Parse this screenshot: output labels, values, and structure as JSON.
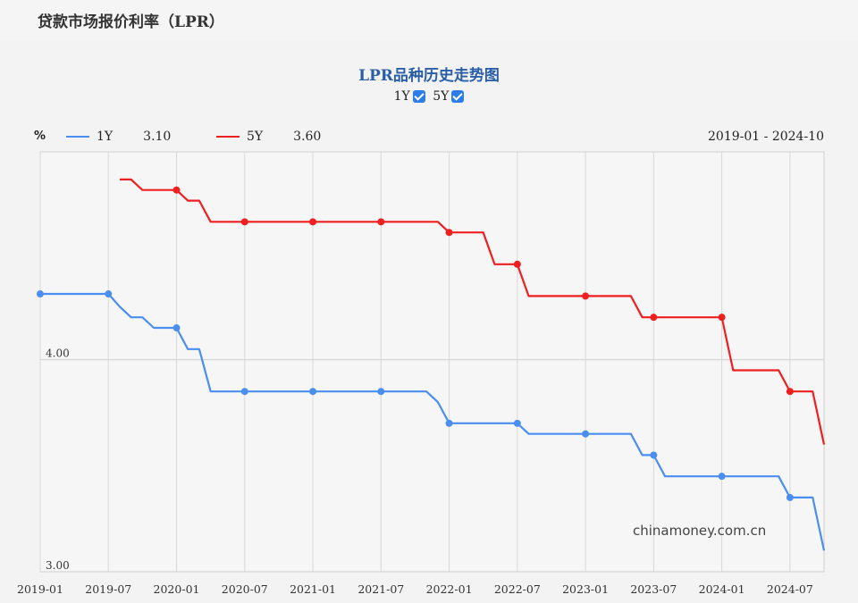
{
  "page": {
    "title": "贷款市场报价利率（LPR）"
  },
  "chart_data": {
    "type": "line",
    "title": "LPR品种历史走势图",
    "toggles": [
      {
        "label": "1Y",
        "checked": true
      },
      {
        "label": "5Y",
        "checked": true
      }
    ],
    "unit_label": "%",
    "range_label": "2019-01 - 2024-10",
    "watermark": "chinamoney.com.cn",
    "xlim": [
      "2019-01",
      "2024-10"
    ],
    "ylim": [
      3.0,
      4.98
    ],
    "y_ticks": [
      "4.00",
      "3.00"
    ],
    "x_ticks": [
      "2019-01",
      "2019-07",
      "2020-01",
      "2020-07",
      "2021-01",
      "2021-07",
      "2022-01",
      "2022-07",
      "2023-01",
      "2023-07",
      "2024-01",
      "2024-07"
    ],
    "grid": true,
    "legend_position": "top-left",
    "series": [
      {
        "name": "1Y",
        "latest": "3.10",
        "color": "#4a8ef0",
        "points": [
          [
            "2019-01",
            4.31
          ],
          [
            "2019-07",
            4.31
          ],
          [
            "2019-08",
            4.25
          ],
          [
            "2019-09",
            4.2
          ],
          [
            "2019-10",
            4.2
          ],
          [
            "2019-11",
            4.15
          ],
          [
            "2019-12",
            4.15
          ],
          [
            "2020-01",
            4.15
          ],
          [
            "2020-02",
            4.05
          ],
          [
            "2020-03",
            4.05
          ],
          [
            "2020-04",
            3.85
          ],
          [
            "2020-07",
            3.85
          ],
          [
            "2021-01",
            3.85
          ],
          [
            "2021-07",
            3.85
          ],
          [
            "2021-11",
            3.85
          ],
          [
            "2021-12",
            3.8
          ],
          [
            "2022-01",
            3.7
          ],
          [
            "2022-07",
            3.7
          ],
          [
            "2022-08",
            3.65
          ],
          [
            "2023-01",
            3.65
          ],
          [
            "2023-05",
            3.65
          ],
          [
            "2023-06",
            3.55
          ],
          [
            "2023-07",
            3.55
          ],
          [
            "2023-08",
            3.45
          ],
          [
            "2024-01",
            3.45
          ],
          [
            "2024-06",
            3.45
          ],
          [
            "2024-07",
            3.35
          ],
          [
            "2024-09",
            3.35
          ],
          [
            "2024-10",
            3.1
          ]
        ],
        "markers": [
          "2019-01",
          "2019-07",
          "2020-01",
          "2020-07",
          "2021-01",
          "2021-07",
          "2022-01",
          "2022-07",
          "2023-01",
          "2023-07",
          "2024-01",
          "2024-07"
        ]
      },
      {
        "name": "5Y",
        "latest": "3.60",
        "color": "#ee1f1f",
        "points": [
          [
            "2019-08",
            4.85
          ],
          [
            "2019-09",
            4.85
          ],
          [
            "2019-10",
            4.8
          ],
          [
            "2019-11",
            4.8
          ],
          [
            "2019-12",
            4.8
          ],
          [
            "2020-01",
            4.8
          ],
          [
            "2020-02",
            4.75
          ],
          [
            "2020-03",
            4.75
          ],
          [
            "2020-04",
            4.65
          ],
          [
            "2020-07",
            4.65
          ],
          [
            "2021-01",
            4.65
          ],
          [
            "2021-07",
            4.65
          ],
          [
            "2021-12",
            4.65
          ],
          [
            "2022-01",
            4.6
          ],
          [
            "2022-04",
            4.6
          ],
          [
            "2022-05",
            4.45
          ],
          [
            "2022-07",
            4.45
          ],
          [
            "2022-08",
            4.3
          ],
          [
            "2023-01",
            4.3
          ],
          [
            "2023-05",
            4.3
          ],
          [
            "2023-06",
            4.2
          ],
          [
            "2023-07",
            4.2
          ],
          [
            "2024-01",
            4.2
          ],
          [
            "2024-02",
            3.95
          ],
          [
            "2024-06",
            3.95
          ],
          [
            "2024-07",
            3.85
          ],
          [
            "2024-09",
            3.85
          ],
          [
            "2024-10",
            3.6
          ]
        ],
        "markers": [
          "2020-01",
          "2020-07",
          "2021-01",
          "2021-07",
          "2022-01",
          "2022-07",
          "2023-01",
          "2023-07",
          "2024-01",
          "2024-07"
        ]
      }
    ]
  }
}
